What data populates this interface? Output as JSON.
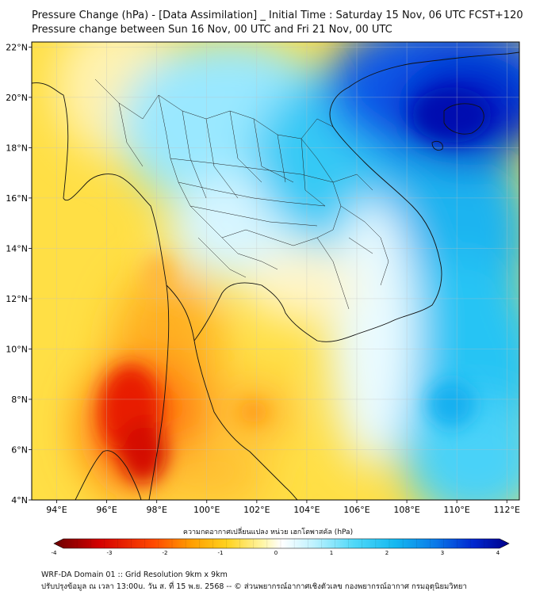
{
  "title_line1": "Pressure Change (hPa) - [Data Assimilation] _ Initial Time : Saturday 15 Nov, 06 UTC FCST+120",
  "title_line2": "Pressure change between Sun 16 Nov, 00 UTC and Fri 21 Nov, 00 UTC",
  "map": {
    "lon_range": [
      93,
      112.5
    ],
    "lat_range": [
      4,
      22.2
    ],
    "lat_ticks": [
      {
        "v": 22,
        "label": "22°N"
      },
      {
        "v": 20,
        "label": "20°N"
      },
      {
        "v": 18,
        "label": "18°N"
      },
      {
        "v": 16,
        "label": "16°N"
      },
      {
        "v": 14,
        "label": "14°N"
      },
      {
        "v": 12,
        "label": "12°N"
      },
      {
        "v": 10,
        "label": "10°N"
      },
      {
        "v": 8,
        "label": "8°N"
      },
      {
        "v": 6,
        "label": "6°N"
      },
      {
        "v": 4,
        "label": "4°N"
      }
    ],
    "lon_ticks": [
      {
        "v": 94,
        "label": "94°E"
      },
      {
        "v": 96,
        "label": "96°E"
      },
      {
        "v": 98,
        "label": "98°E"
      },
      {
        "v": 100,
        "label": "100°E"
      },
      {
        "v": 102,
        "label": "102°E"
      },
      {
        "v": 104,
        "label": "104°E"
      },
      {
        "v": 106,
        "label": "106°E"
      },
      {
        "v": 108,
        "label": "108°E"
      },
      {
        "v": 110,
        "label": "110°E"
      },
      {
        "v": 112,
        "label": "112°E"
      }
    ],
    "gridlines": true
  },
  "colorbar": {
    "title": "ความกดอากาศเปลี่ยนแปลง หน่วย เฮกโตพาสคัล (hPa)",
    "range": [
      -4,
      4
    ],
    "ticks": [
      {
        "v": -4,
        "label": "-4"
      },
      {
        "v": -3,
        "label": "-3"
      },
      {
        "v": -2,
        "label": "-2"
      },
      {
        "v": -1,
        "label": "-1"
      },
      {
        "v": 0,
        "label": "0"
      },
      {
        "v": 1,
        "label": "1"
      },
      {
        "v": 2,
        "label": "2"
      },
      {
        "v": 3,
        "label": "3"
      },
      {
        "v": 4,
        "label": "4"
      }
    ],
    "colors": [
      "#6b0000",
      "#e00000",
      "#ff7a00",
      "#ffd21e",
      "#fff7b0",
      "#ffffff",
      "#b8f0ff",
      "#16c8f5",
      "#0050e0",
      "#00009a"
    ]
  },
  "footer_line1": "WRF-DA Domain 01 :: Grid Resolution 9km x 9km",
  "footer_line2": "ปรับปรุงข้อมูล ณ เวลา 13:00u. วัน ส. ที่ 15 พ.ย. 2568 -- © ส่วนพยากรณ์อากาศเชิงตัวเลข กองพยากรณ์อากาศ กรมอุตุนิยมวิทยา"
}
